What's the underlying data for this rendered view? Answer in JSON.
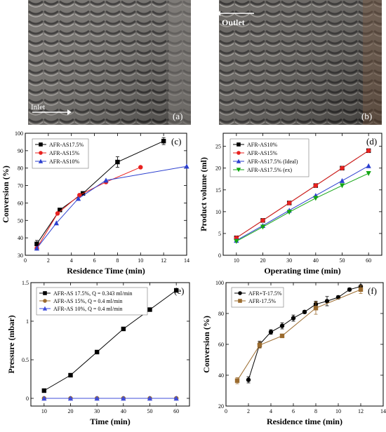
{
  "photos": [
    {
      "label": "(a)",
      "annotation": "Inlet"
    },
    {
      "label": "(b)",
      "annotation": "Outlet"
    }
  ],
  "chart_data": [
    {
      "panel": "(c)",
      "type": "line",
      "xlabel": "Residence Time (min)",
      "ylabel": "Conversion (%)",
      "xlim": [
        0,
        14
      ],
      "ylim": [
        30,
        100
      ],
      "xticks": [
        0,
        2,
        4,
        6,
        8,
        10,
        12,
        14
      ],
      "yticks": [
        30,
        40,
        50,
        60,
        70,
        80,
        90,
        100
      ],
      "legend_position": "top-left",
      "series": [
        {
          "name": "AFR-AS17.5%",
          "color": "#000000",
          "marker": "square",
          "x": [
            1,
            3,
            5,
            8,
            12
          ],
          "y": [
            36.5,
            56,
            65.5,
            83.5,
            95.5
          ],
          "err": [
            2,
            1,
            1,
            3,
            2
          ]
        },
        {
          "name": "AFR-AS15%",
          "color": "#e8211f",
          "marker": "circle",
          "x": [
            1,
            2.8,
            4.7,
            7,
            10
          ],
          "y": [
            34,
            54,
            64.5,
            72,
            80.5
          ],
          "err": [
            0,
            0,
            0,
            0,
            0
          ]
        },
        {
          "name": "AFR-AS10%",
          "color": "#2b3fcf",
          "marker": "triangle",
          "x": [
            1,
            2.7,
            4.6,
            7,
            14
          ],
          "y": [
            34,
            48.5,
            62.5,
            73,
            81
          ],
          "err": [
            0,
            0,
            0,
            0,
            0
          ]
        }
      ]
    },
    {
      "panel": "(d)",
      "type": "line",
      "xlabel": "Operating time (min)",
      "ylabel": "Product volume (ml)",
      "xlim": [
        5,
        65
      ],
      "ylim": [
        0,
        28
      ],
      "xticks": [
        10,
        20,
        30,
        40,
        50,
        60
      ],
      "yticks": [
        0,
        5,
        10,
        15,
        20,
        25
      ],
      "legend_position": "top-left",
      "series": [
        {
          "name": "AFR-AS10%",
          "color": "#000000",
          "marker": "square",
          "x": [
            10,
            20,
            30,
            40,
            50,
            60
          ],
          "y": [
            4,
            8,
            12,
            16,
            20,
            24
          ]
        },
        {
          "name": "AFR-AS15%",
          "color": "#e8211f",
          "marker": "circle",
          "x": [
            10,
            20,
            30,
            40,
            50,
            60
          ],
          "y": [
            4,
            8,
            12,
            16,
            20,
            24
          ]
        },
        {
          "name": "AFR-AS17.5% (Ideal)",
          "color": "#2b3fcf",
          "marker": "triangle",
          "x": [
            10,
            20,
            30,
            40,
            50,
            60
          ],
          "y": [
            3.4,
            6.8,
            10.3,
            13.7,
            17.1,
            20.5
          ]
        },
        {
          "name": "AFR-AS17.5% (ex)",
          "color": "#14a614",
          "marker": "triangle-down",
          "x": [
            10,
            20,
            30,
            40,
            50,
            60
          ],
          "y": [
            3.2,
            6.5,
            9.9,
            13.1,
            16.0,
            18.8
          ]
        }
      ]
    },
    {
      "panel": "(e)",
      "type": "line",
      "xlabel": "Time (min)",
      "ylabel": "Pressure (mbar)",
      "xlim": [
        5,
        65
      ],
      "ylim": [
        -0.1,
        1.5
      ],
      "xticks": [
        10,
        20,
        30,
        40,
        50,
        60
      ],
      "yticks": [
        0,
        0.5,
        1,
        1.5
      ],
      "ytick_labels": [
        "0",
        "0.5",
        "1",
        "1.5"
      ],
      "legend_position": "top-left",
      "series": [
        {
          "name": "AFR-AS 17.5%, Q = 0.343 ml/min",
          "color": "#000000",
          "marker": "square",
          "x": [
            10,
            20,
            30,
            40,
            50,
            60
          ],
          "y": [
            0.1,
            0.3,
            0.6,
            0.9,
            1.15,
            1.4
          ]
        },
        {
          "name": "AFR-AS 15%, Q = 0.4 ml/min",
          "color": "#9b6b2e",
          "marker": "circle",
          "x": [
            10,
            20,
            30,
            40,
            50,
            60
          ],
          "y": [
            0,
            0,
            0,
            0,
            0,
            0
          ]
        },
        {
          "name": "AFR-AS 10%, Q = 0.4 ml/min",
          "color": "#3f4ddb",
          "marker": "triangle",
          "x": [
            10,
            20,
            30,
            40,
            50,
            60
          ],
          "y": [
            0,
            0,
            0,
            0,
            0,
            0
          ]
        }
      ]
    },
    {
      "panel": "(f)",
      "type": "line",
      "xlabel": "Residence time (min)",
      "ylabel": "Conversion (%)",
      "xlim": [
        0,
        14
      ],
      "ylim": [
        20,
        100
      ],
      "xticks": [
        0,
        2,
        4,
        6,
        8,
        10,
        12,
        14
      ],
      "yticks": [
        20,
        40,
        60,
        80,
        100
      ],
      "legend_position": "top-left",
      "series": [
        {
          "name": "AFR+T-17.5%",
          "color": "#000000",
          "marker": "circle",
          "x": [
            2,
            3,
            4,
            5,
            6,
            7,
            8,
            9,
            10,
            11,
            12
          ],
          "y": [
            37,
            60,
            68,
            72,
            77,
            81,
            86,
            88,
            90.5,
            95.5,
            97.5
          ],
          "err": [
            2,
            2,
            1.5,
            2,
            2,
            1,
            2,
            3,
            1,
            1,
            1
          ]
        },
        {
          "name": "AFR-17.5%",
          "color": "#9b6b2e",
          "marker": "square",
          "x": [
            1,
            3,
            5,
            8,
            12
          ],
          "y": [
            36.5,
            59.5,
            65.5,
            83.5,
            95.5
          ],
          "err": [
            2,
            2,
            1,
            4,
            2.5
          ]
        }
      ]
    }
  ]
}
